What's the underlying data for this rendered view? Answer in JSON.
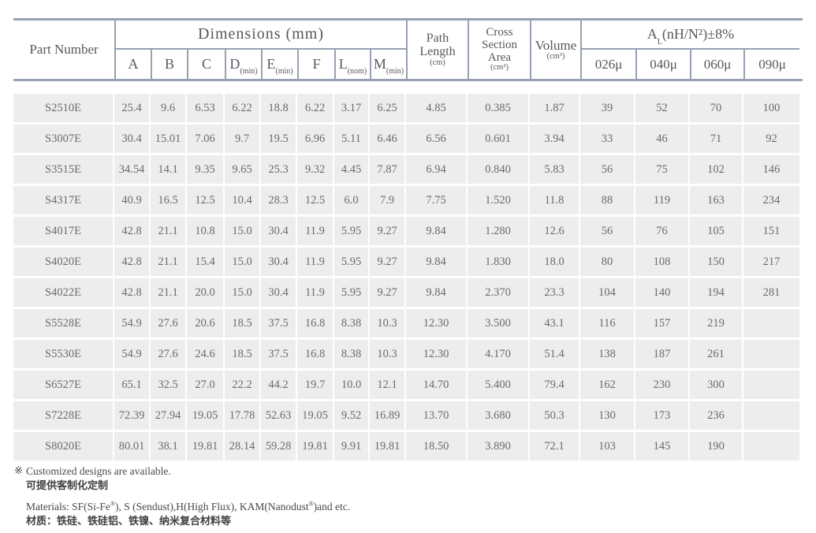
{
  "colors": {
    "border": "#97a1b3",
    "row_bg": "#ededee",
    "header_text": "#57585a",
    "body_text": "#6a6b6d",
    "footnote_text": "#48494b"
  },
  "table": {
    "header": {
      "part_number": "Part Number",
      "dimensions_group": "Dimensions (mm)",
      "dim_cols": [
        {
          "base": "A",
          "sub": ""
        },
        {
          "base": "B",
          "sub": ""
        },
        {
          "base": "C",
          "sub": ""
        },
        {
          "base": "D",
          "sub": "(min)"
        },
        {
          "base": "E",
          "sub": "(min)"
        },
        {
          "base": "F",
          "sub": ""
        },
        {
          "base": "L",
          "sub": "(nom)"
        },
        {
          "base": "M",
          "sub": "(min)"
        }
      ],
      "path_length": {
        "title": "Path Length",
        "unit": "(cm)"
      },
      "cross_section": {
        "title": "Cross Section Area",
        "unit": "(cm²)"
      },
      "volume": {
        "title": "Volume",
        "unit": "(cm³)"
      },
      "al_group": {
        "base": "A",
        "sub": "L",
        "rest": "(nH/N²)±8%"
      },
      "al_cols": [
        "026μ",
        "040μ",
        "060μ",
        "090μ"
      ]
    },
    "rows": [
      {
        "part": "S2510E",
        "values": [
          "25.4",
          "9.6",
          "6.53",
          "6.22",
          "18.8",
          "6.22",
          "3.17",
          "6.25",
          "4.85",
          "0.385",
          "1.87",
          "39",
          "52",
          "70",
          "100"
        ]
      },
      {
        "part": "S3007E",
        "values": [
          "30.4",
          "15.01",
          "7.06",
          "9.7",
          "19.5",
          "6.96",
          "5.11",
          "6.46",
          "6.56",
          "0.601",
          "3.94",
          "33",
          "46",
          "71",
          "92"
        ]
      },
      {
        "part": "S3515E",
        "values": [
          "34.54",
          "14.1",
          "9.35",
          "9.65",
          "25.3",
          "9.32",
          "4.45",
          "7.87",
          "6.94",
          "0.840",
          "5.83",
          "56",
          "75",
          "102",
          "146"
        ]
      },
      {
        "part": "S4317E",
        "values": [
          "40.9",
          "16.5",
          "12.5",
          "10.4",
          "28.3",
          "12.5",
          "6.0",
          "7.9",
          "7.75",
          "1.520",
          "11.8",
          "88",
          "119",
          "163",
          "234"
        ]
      },
      {
        "part": "S4017E",
        "values": [
          "42.8",
          "21.1",
          "10.8",
          "15.0",
          "30.4",
          "11.9",
          "5.95",
          "9.27",
          "9.84",
          "1.280",
          "12.6",
          "56",
          "76",
          "105",
          "151"
        ]
      },
      {
        "part": "S4020E",
        "values": [
          "42.8",
          "21.1",
          "15.4",
          "15.0",
          "30.4",
          "11.9",
          "5.95",
          "9.27",
          "9.84",
          "1.830",
          "18.0",
          "80",
          "108",
          "150",
          "217"
        ]
      },
      {
        "part": "S4022E",
        "values": [
          "42.8",
          "21.1",
          "20.0",
          "15.0",
          "30.4",
          "11.9",
          "5.95",
          "9.27",
          "9.84",
          "2.370",
          "23.3",
          "104",
          "140",
          "194",
          "281"
        ]
      },
      {
        "part": "S5528E",
        "values": [
          "54.9",
          "27.6",
          "20.6",
          "18.5",
          "37.5",
          "16.8",
          "8.38",
          "10.3",
          "12.30",
          "3.500",
          "43.1",
          "116",
          "157",
          "219",
          ""
        ]
      },
      {
        "part": "S5530E",
        "values": [
          "54.9",
          "27.6",
          "24.6",
          "18.5",
          "37.5",
          "16.8",
          "8.38",
          "10.3",
          "12.30",
          "4.170",
          "51.4",
          "138",
          "187",
          "261",
          ""
        ]
      },
      {
        "part": "S6527E",
        "values": [
          "65.1",
          "32.5",
          "27.0",
          "22.2",
          "44.2",
          "19.7",
          "10.0",
          "12.1",
          "14.70",
          "5.400",
          "79.4",
          "162",
          "230",
          "300",
          ""
        ]
      },
      {
        "part": "S7228E",
        "values": [
          "72.39",
          "27.94",
          "19.05",
          "17.78",
          "52.63",
          "19.05",
          "9.52",
          "16.89",
          "13.70",
          "3.680",
          "50.3",
          "130",
          "173",
          "236",
          ""
        ]
      },
      {
        "part": "S8020E",
        "values": [
          "80.01",
          "38.1",
          "19.81",
          "28.14",
          "59.28",
          "19.81",
          "9.91",
          "19.81",
          "18.50",
          "3.890",
          "72.1",
          "103",
          "145",
          "190",
          ""
        ]
      }
    ]
  },
  "footnotes": {
    "marker": "※",
    "custom_en": "Customized designs are available.",
    "custom_zh": "可提供客制化定制",
    "materials_en_segments": [
      {
        "t": "Materials: SF(Si-Fe",
        "sup": false
      },
      {
        "t": "®",
        "sup": true
      },
      {
        "t": "), S (Sendust),H(High Flux), KAM(Nanodust",
        "sup": false
      },
      {
        "t": "®",
        "sup": true
      },
      {
        "t": ")and etc.",
        "sup": false
      }
    ],
    "materials_zh": "材质：铁硅、铁硅铝、铁镍、纳米复合材料等"
  }
}
